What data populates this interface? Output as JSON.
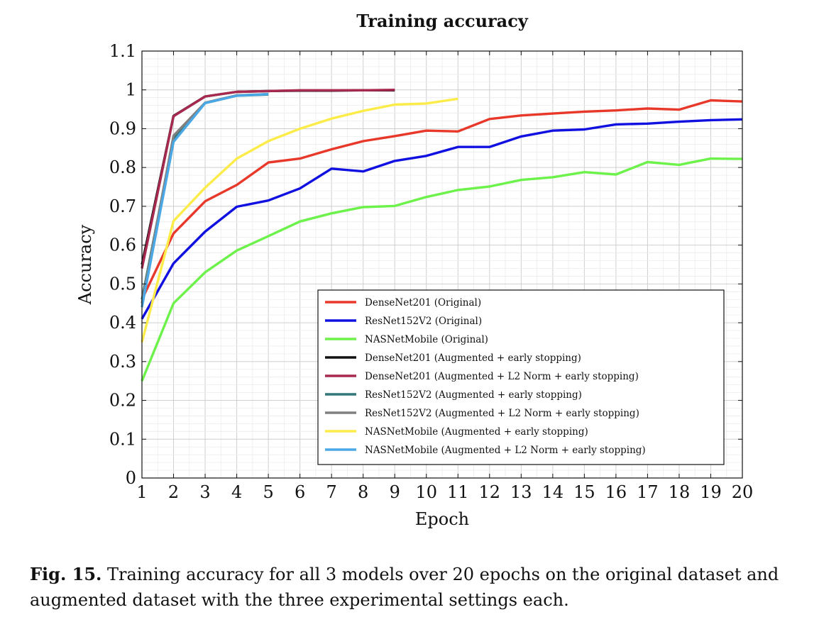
{
  "chart_data": {
    "type": "line",
    "title": "Training accuracy",
    "xlabel": "Epoch",
    "ylabel": "Accuracy",
    "xlim": [
      1,
      20
    ],
    "ylim": [
      0,
      1.1
    ],
    "xticks": [
      1,
      2,
      3,
      4,
      5,
      6,
      7,
      8,
      9,
      10,
      11,
      12,
      13,
      14,
      15,
      16,
      17,
      18,
      19,
      20
    ],
    "yticks": [
      0,
      0.1,
      0.2,
      0.3,
      0.4,
      0.5,
      0.6,
      0.7,
      0.8,
      0.9,
      1,
      1.1
    ],
    "grid": true,
    "legend_position": "bottom-right",
    "series": [
      {
        "name": "DenseNet201 (Original)",
        "color": "#e8382a",
        "x": [
          1,
          2,
          3,
          4,
          5,
          6,
          7,
          8,
          9,
          10,
          11,
          12,
          13,
          14,
          15,
          16,
          17,
          18,
          19,
          20
        ],
        "y": [
          0.46,
          0.63,
          0.713,
          0.755,
          0.813,
          0.823,
          0.847,
          0.868,
          0.881,
          0.895,
          0.893,
          0.925,
          0.934,
          0.939,
          0.944,
          0.947,
          0.952,
          0.949,
          0.973,
          0.97
        ]
      },
      {
        "name": "ResNet152V2 (Original)",
        "color": "#1010e0",
        "x": [
          1,
          2,
          3,
          4,
          5,
          6,
          7,
          8,
          9,
          10,
          11,
          12,
          13,
          14,
          15,
          16,
          17,
          18,
          19,
          20
        ],
        "y": [
          0.41,
          0.553,
          0.635,
          0.699,
          0.715,
          0.746,
          0.797,
          0.79,
          0.817,
          0.83,
          0.853,
          0.853,
          0.88,
          0.895,
          0.898,
          0.911,
          0.913,
          0.918,
          0.922,
          0.924
        ]
      },
      {
        "name": "NASNetMobile (Original)",
        "color": "#6cf24a",
        "x": [
          1,
          2,
          3,
          4,
          5,
          6,
          7,
          8,
          9,
          10,
          11,
          12,
          13,
          14,
          15,
          16,
          17,
          18,
          19,
          20
        ],
        "y": [
          0.25,
          0.45,
          0.53,
          0.586,
          0.623,
          0.661,
          0.682,
          0.698,
          0.701,
          0.724,
          0.742,
          0.751,
          0.768,
          0.775,
          0.788,
          0.782,
          0.814,
          0.807,
          0.823,
          0.822
        ]
      },
      {
        "name": "DenseNet201 (Augmented + early stopping)",
        "color": "#111111",
        "x": [
          1,
          2,
          3,
          4,
          5,
          6,
          7,
          8,
          9
        ],
        "y": [
          0.55,
          0.933,
          0.983,
          0.995,
          0.997,
          0.998,
          0.998,
          0.999,
          0.999
        ]
      },
      {
        "name": "DenseNet201 (Augmented + L2 Norm + early stopping)",
        "color": "#a8294f",
        "x": [
          1,
          2,
          3,
          4,
          5,
          6,
          7,
          8,
          9
        ],
        "y": [
          0.54,
          0.932,
          0.983,
          0.995,
          0.997,
          0.999,
          0.999,
          0.999,
          1.0
        ]
      },
      {
        "name": "ResNet152V2 (Augmented + early stopping)",
        "color": "#33777a",
        "x": [
          1,
          2,
          3,
          4,
          5
        ],
        "y": [
          0.46,
          0.875,
          0.966,
          0.985,
          0.988
        ]
      },
      {
        "name": "ResNet152V2 (Augmented + L2 Norm + early stopping)",
        "color": "#808080",
        "x": [
          1,
          2,
          3,
          4,
          5
        ],
        "y": [
          0.45,
          0.882,
          0.967,
          0.986,
          0.989
        ]
      },
      {
        "name": "NASNetMobile (Augmented + early stopping)",
        "color": "#fcec4a",
        "x": [
          1,
          2,
          3,
          4,
          5,
          6,
          7,
          8,
          9,
          10,
          11
        ],
        "y": [
          0.35,
          0.662,
          0.748,
          0.823,
          0.868,
          0.9,
          0.926,
          0.946,
          0.962,
          0.965,
          0.977
        ]
      },
      {
        "name": "NASNetMobile (Augmented + L2 Norm + early stopping)",
        "color": "#4aa8e6",
        "x": [
          1,
          2,
          3,
          4,
          5
        ],
        "y": [
          0.44,
          0.866,
          0.966,
          0.985,
          0.989
        ]
      }
    ]
  },
  "caption": {
    "label": "Fig. 15.",
    "text": "Training accuracy for all 3 models over 20 epochs on the original dataset and augmented dataset with the three experimental settings each."
  }
}
